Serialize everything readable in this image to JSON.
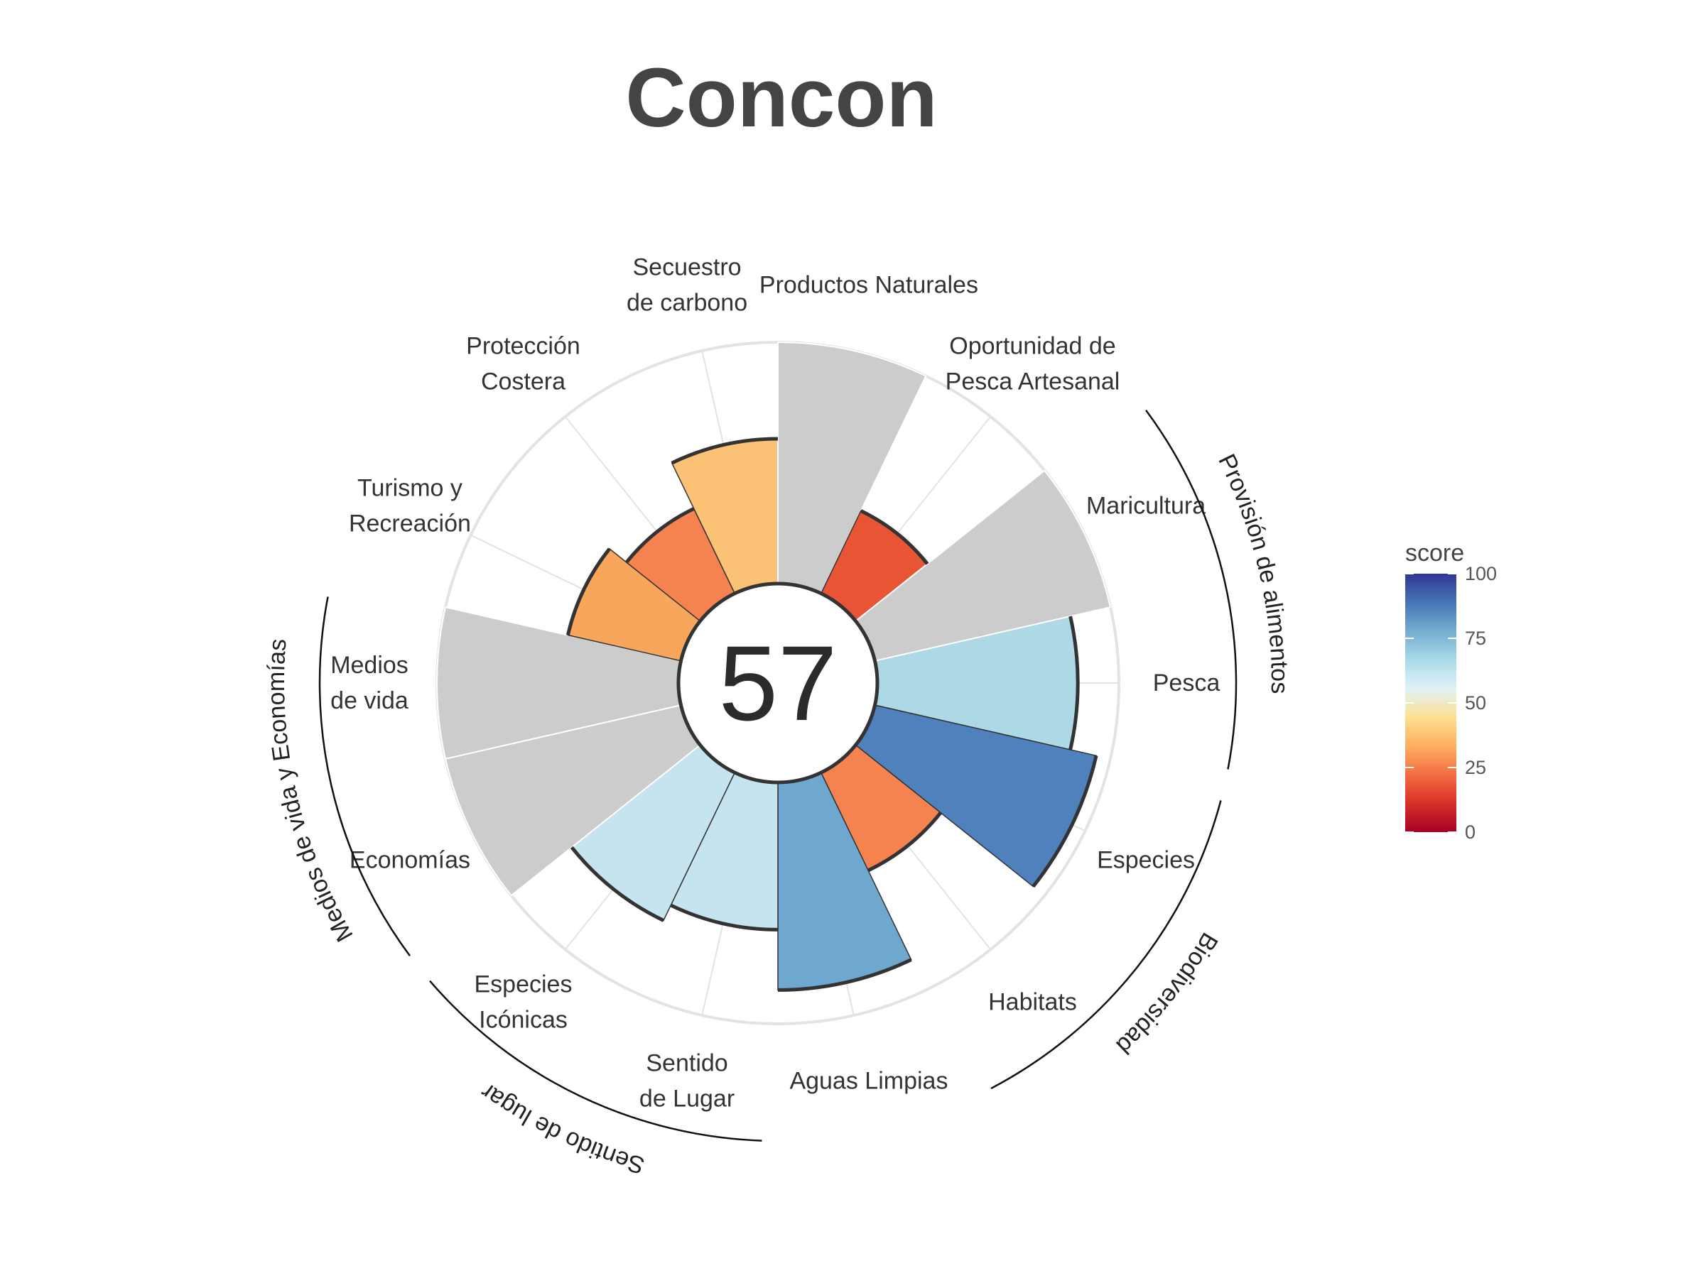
{
  "chart_data": {
    "type": "polar-bar",
    "title": "Concon",
    "center_value": "57",
    "rmax": 100,
    "goals": [
      {
        "label": "Pesca",
        "value": 83,
        "color": "#add8e6",
        "group": "Provisión de alimentos"
      },
      {
        "label": "Especies",
        "value": 94,
        "color": "#4f81bd",
        "group": "Biodiversidad"
      },
      {
        "label": "Habitats",
        "value": 45,
        "color": "#f4834f",
        "group": "Biodiversidad"
      },
      {
        "label": "Aguas Limpias",
        "value": 86,
        "color": "#6fa8cf",
        "group": null
      },
      {
        "label": "Sentido\nde Lugar",
        "value": 61,
        "color": "#c6e4ef",
        "group": "Sentido de lugar"
      },
      {
        "label": "Especies\nIcónicas",
        "value": 68,
        "color": "#c6e4ef",
        "group": "Sentido de lugar"
      },
      {
        "label": "Economías",
        "value": null,
        "color": null,
        "group": "Medios de vida y Economías"
      },
      {
        "label": "Medios\nde vida",
        "value": null,
        "color": null,
        "group": "Medios de vida y Economías"
      },
      {
        "label": "Turismo y\nRecreación",
        "value": 48,
        "color": "#f8a65c",
        "group": null
      },
      {
        "label": "Protección\nCostera",
        "value": 39,
        "color": "#f4834f",
        "group": null
      },
      {
        "label": "Secuestro\nde carbono",
        "value": 60,
        "color": "#fbc275",
        "group": null
      },
      {
        "label": "Productos Naturales",
        "value": null,
        "color": null,
        "group": null
      },
      {
        "label": "Oportunidad de\nPesca Artesanal",
        "value": 38,
        "color": "#e85535",
        "group": null
      },
      {
        "label": "Maricultura",
        "value": null,
        "color": null,
        "group": "Provisión de alimentos"
      }
    ],
    "groups": [
      {
        "name": "Provisión de alimentos"
      },
      {
        "name": "Biodiversidad"
      },
      {
        "name": "Sentido de lugar"
      },
      {
        "name": "Medios de vida y Economías"
      }
    ],
    "legend": {
      "title": "score",
      "ticks": [
        "0",
        "25",
        "50",
        "75",
        "100"
      ],
      "colors": [
        "#a50026",
        "#d73027",
        "#f46d43",
        "#fdae61",
        "#fee090",
        "#e0f3f8",
        "#abd9e9",
        "#74add1",
        "#4575b4",
        "#313695"
      ],
      "placement": "right"
    },
    "na_color": "#cccccc"
  }
}
